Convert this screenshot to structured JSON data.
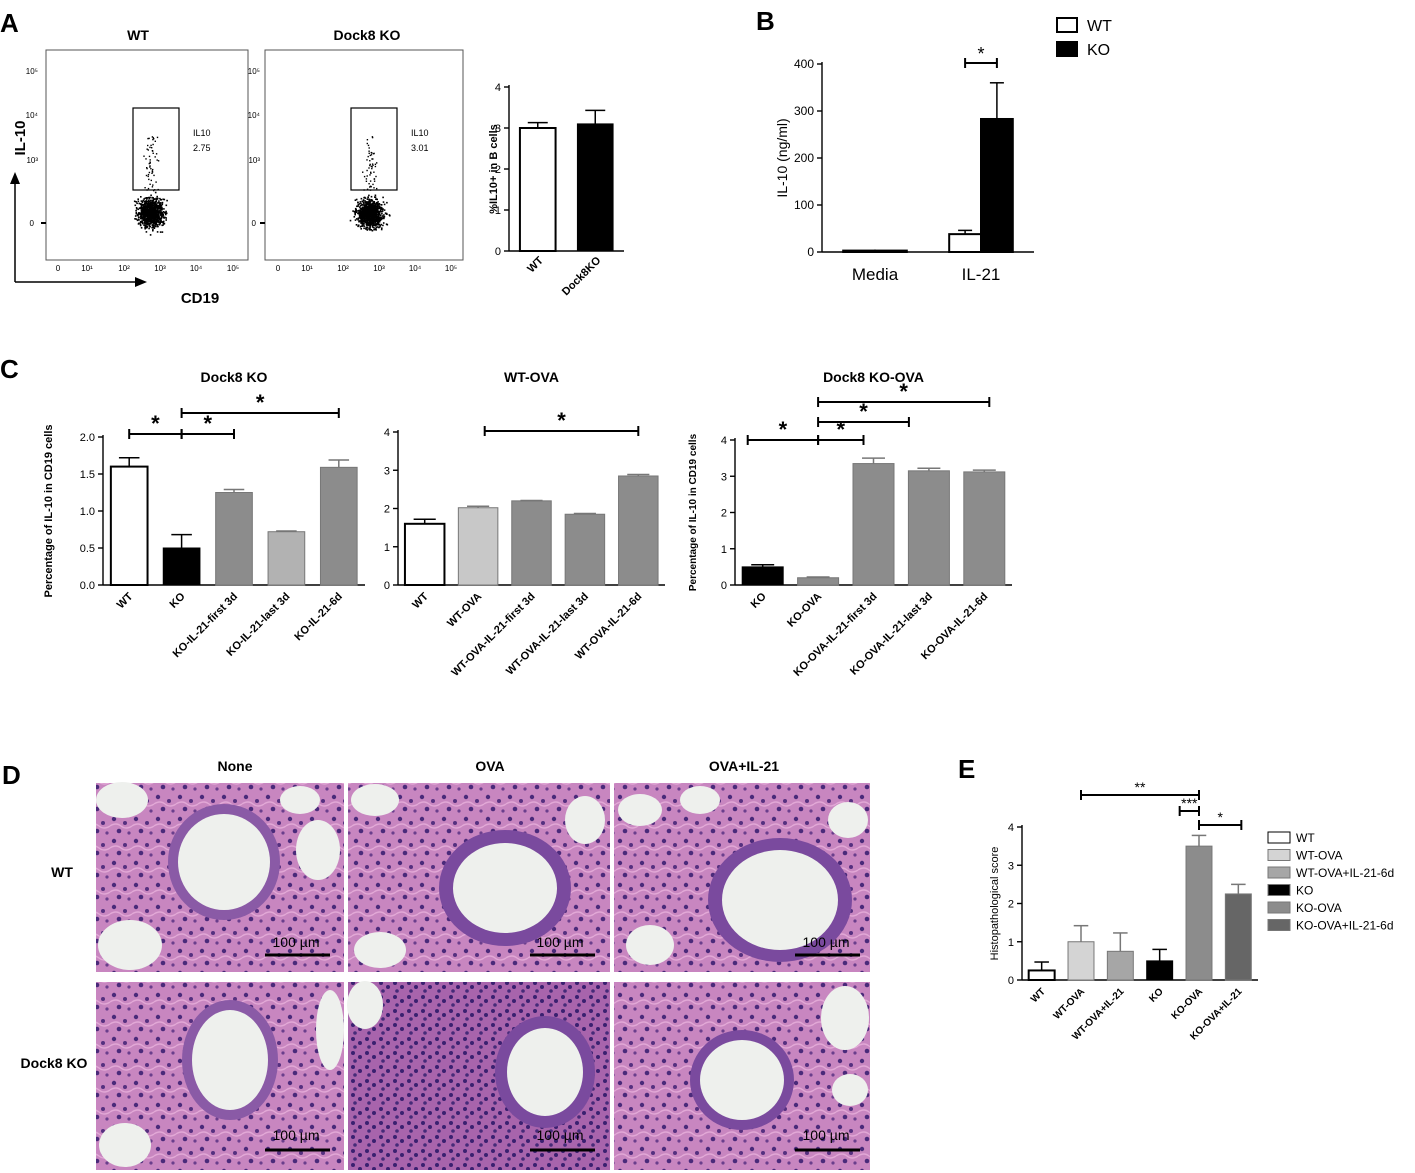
{
  "panel_labels": {
    "a": "A",
    "b": "B",
    "c": "C",
    "d": "D",
    "e": "E"
  },
  "flow": {
    "titles": [
      "WT",
      "Dock8 KO"
    ],
    "ylabel": "IL-10",
    "xlabel": "CD19",
    "gate_name": "IL10",
    "gate_values": [
      "2.75",
      "3.01"
    ],
    "x_ticks": [
      "0",
      "10¹",
      "10²",
      "10³",
      "10⁴",
      "10⁵"
    ],
    "y_ticks": [
      "0",
      "10³",
      "10⁴",
      "10⁵"
    ]
  },
  "histology": {
    "cols": [
      "None",
      "OVA",
      "OVA+IL-21"
    ],
    "rows": [
      "WT",
      "Dock8 KO"
    ],
    "scale": "100 µm"
  },
  "chart_data": [
    {
      "id": "A-bar",
      "type": "bar",
      "categories": [
        "WT",
        "Dock8KO"
      ],
      "values": [
        3.0,
        3.1
      ],
      "errors": [
        0.13,
        0.33
      ],
      "colors": [
        "#ffffff",
        "#000000"
      ],
      "xlabel": "",
      "ylabel": "%IL10+ in B cells",
      "ylim": [
        0,
        4
      ],
      "yticks": [
        "0",
        "1",
        "2",
        "3",
        "4"
      ],
      "grid": false
    },
    {
      "id": "B",
      "type": "bar",
      "categories": [
        "Media",
        "IL-21"
      ],
      "series": [
        {
          "name": "WT",
          "values": [
            3,
            38
          ],
          "errors": [
            0,
            8
          ],
          "color": "#ffffff"
        },
        {
          "name": "KO",
          "values": [
            3,
            283
          ],
          "errors": [
            0,
            77
          ],
          "color": "#000000"
        }
      ],
      "ylabel": "IL-10 (ng/ml)",
      "ylim": [
        0,
        400
      ],
      "yticks": [
        "0",
        "100",
        "200",
        "300",
        "400"
      ],
      "legend": "top-right",
      "significance": [
        {
          "label": "*",
          "between": [
            "WT IL-21",
            "KO IL-21"
          ]
        }
      ],
      "grid": false
    },
    {
      "id": "C1",
      "type": "bar",
      "title": "Dock8 KO",
      "categories": [
        "WT",
        "KO",
        "KO-IL-21-first 3d",
        "KO-IL-21-last 3d",
        "KO-IL-21-6d"
      ],
      "values": [
        1.6,
        0.5,
        1.25,
        0.72,
        1.59
      ],
      "errors": [
        0.12,
        0.18,
        0.04,
        0.01,
        0.1
      ],
      "colors": [
        "#ffffff",
        "#000000",
        "#8c8c8c",
        "#b2b2b2",
        "#8c8c8c"
      ],
      "ylabel": "Percentage of IL-10 in  CD19 cells",
      "ylim": [
        0,
        2
      ],
      "yticks": [
        "0.0",
        "0.5",
        "1.0",
        "1.5",
        "2.0"
      ],
      "significance": [
        {
          "label": "*",
          "between": [
            "WT",
            "KO"
          ]
        },
        {
          "label": "*",
          "between": [
            "KO",
            "KO-IL-21-first 3d"
          ]
        },
        {
          "label": "*",
          "between": [
            "KO",
            "KO-IL-21-6d"
          ]
        }
      ],
      "grid": false
    },
    {
      "id": "C2",
      "type": "bar",
      "title": "WT-OVA",
      "categories": [
        "WT",
        "WT-OVA",
        "WT-OVA-IL-21-first 3d",
        "WT-OVA-IL-21-last 3d",
        "WT-OVA-IL-21-6d"
      ],
      "values": [
        1.6,
        2.02,
        2.2,
        1.85,
        2.85
      ],
      "errors": [
        0.12,
        0.04,
        0.01,
        0.02,
        0.04
      ],
      "colors": [
        "#ffffff",
        "#c8c8c8",
        "#8c8c8c",
        "#8c8c8c",
        "#8c8c8c"
      ],
      "ylabel": "",
      "ylim": [
        0,
        4
      ],
      "yticks": [
        "0",
        "1",
        "2",
        "3",
        "4"
      ],
      "significance": [
        {
          "label": "*",
          "between": [
            "WT",
            "WT-OVA-IL-21-6d"
          ]
        }
      ],
      "grid": false
    },
    {
      "id": "C3",
      "type": "bar",
      "title": "Dock8 KO-OVA",
      "categories": [
        "KO",
        "KO-OVA",
        "KO-OVA-IL-21-first 3d",
        "KO-OVA-IL-21-last 3d",
        "KO-OVA-IL-21-6d"
      ],
      "values": [
        0.5,
        0.2,
        3.35,
        3.15,
        3.12
      ],
      "errors": [
        0.06,
        0.02,
        0.15,
        0.07,
        0.05
      ],
      "colors": [
        "#000000",
        "#8c8c8c",
        "#8c8c8c",
        "#8c8c8c",
        "#8c8c8c"
      ],
      "ylabel": "Percentage of IL-10 in  CD19 cells",
      "ylim": [
        0,
        4
      ],
      "yticks": [
        "0",
        "1",
        "2",
        "3",
        "4"
      ],
      "significance": [
        {
          "label": "*",
          "between": [
            "KO",
            "KO-OVA"
          ]
        },
        {
          "label": "*",
          "between": [
            "KO-OVA",
            "KO-OVA-IL-21-first 3d"
          ]
        },
        {
          "label": "*",
          "between": [
            "KO-OVA",
            "KO-OVA-IL-21-last 3d"
          ]
        },
        {
          "label": "*",
          "between": [
            "KO-OVA",
            "KO-OVA-IL-21-6d"
          ]
        }
      ],
      "grid": false
    },
    {
      "id": "E",
      "type": "bar",
      "categories": [
        "WT",
        "WT-OVA",
        "WT-OVA+IL-21",
        "KO",
        "KO-OVA",
        "KO-OVA+IL-21"
      ],
      "values": [
        0.25,
        1.0,
        0.75,
        0.5,
        3.5,
        2.25
      ],
      "errors": [
        0.22,
        0.42,
        0.48,
        0.3,
        0.28,
        0.25
      ],
      "colors": [
        "#ffffff",
        "#d4d4d4",
        "#a6a6a6",
        "#000000",
        "#8c8c8c",
        "#666666"
      ],
      "legend_entries": [
        "WT",
        "WT-OVA",
        "WT-OVA+IL-21-6d",
        "KO",
        "KO-OVA",
        "KO-OVA+IL-21-6d"
      ],
      "ylabel": "Histopathological score",
      "ylim": [
        0,
        4
      ],
      "yticks": [
        "0",
        "1",
        "2",
        "3",
        "4"
      ],
      "legend": "right",
      "significance": [
        {
          "label": "**",
          "between": [
            "WT-OVA",
            "KO-OVA"
          ]
        },
        {
          "label": "***",
          "between": [
            "KO",
            "KO-OVA"
          ]
        },
        {
          "label": "*",
          "between": [
            "KO-OVA",
            "KO-OVA+IL-21"
          ]
        }
      ],
      "grid": false
    }
  ]
}
